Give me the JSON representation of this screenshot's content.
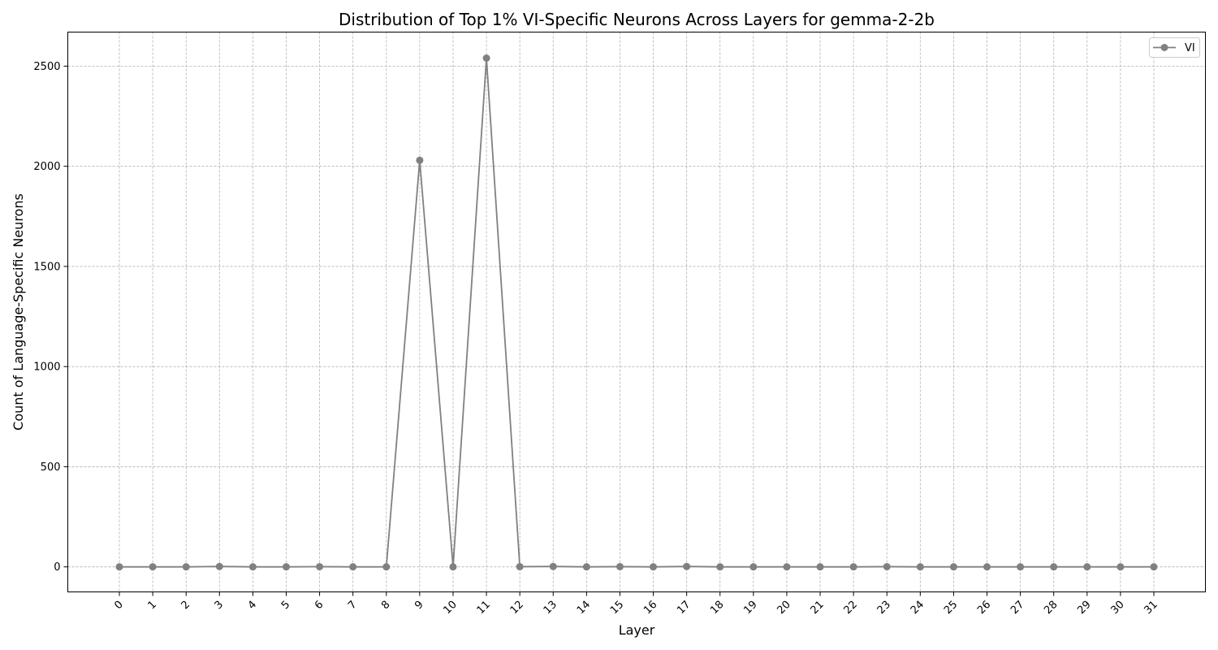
{
  "chart_data": {
    "type": "line",
    "title": "Distribution of Top 1% VI-Specific Neurons Across Layers for gemma-2-2b",
    "xlabel": "Layer",
    "ylabel": "Count of Language-Specific Neurons",
    "categories": [
      "0",
      "1",
      "2",
      "3",
      "4",
      "5",
      "6",
      "7",
      "8",
      "9",
      "10",
      "11",
      "12",
      "13",
      "14",
      "15",
      "16",
      "17",
      "18",
      "19",
      "20",
      "21",
      "22",
      "23",
      "24",
      "25",
      "26",
      "27",
      "28",
      "29",
      "30",
      "31"
    ],
    "series": [
      {
        "name": "VI",
        "color": "#808080",
        "values": [
          0,
          0,
          0,
          2,
          0,
          0,
          1,
          0,
          0,
          2030,
          0,
          2540,
          1,
          2,
          0,
          1,
          0,
          2,
          0,
          0,
          0,
          0,
          0,
          1,
          0,
          0,
          0,
          0,
          0,
          0,
          0,
          0
        ]
      }
    ],
    "ylim": [
      -125,
      2670
    ],
    "yticks": [
      0,
      500,
      1000,
      1500,
      2000,
      2500
    ],
    "grid": true,
    "legend_position": "top-right",
    "marker": "circle"
  }
}
